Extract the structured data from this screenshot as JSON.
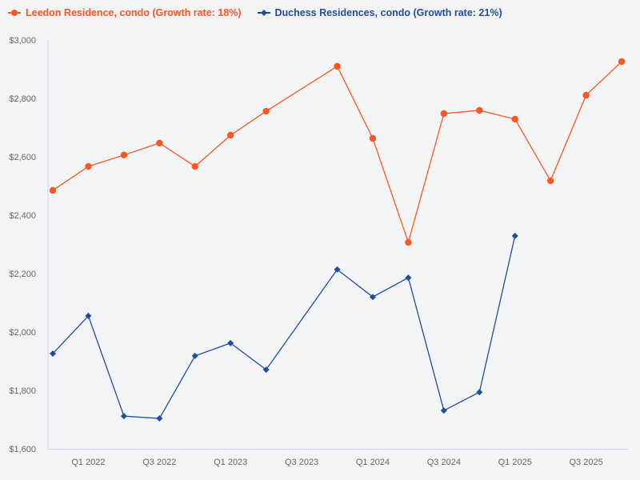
{
  "chart_data": {
    "type": "line",
    "title": "",
    "xlabel": "",
    "ylabel": "",
    "ylim": [
      1600,
      3000
    ],
    "y_ticks": [
      "$1,600",
      "$1,800",
      "$2,000",
      "$2,200",
      "$2,400",
      "$2,600",
      "$2,800",
      "$3,000"
    ],
    "y_tick_values": [
      1600,
      1800,
      2000,
      2200,
      2400,
      2600,
      2800,
      3000
    ],
    "x": [
      "Q4 2021",
      "Q1 2022",
      "Q2 2022",
      "Q3 2022",
      "Q4 2022",
      "Q1 2023",
      "Q2 2023",
      "Q3 2023",
      "Q4 2023",
      "Q1 2024",
      "Q2 2024",
      "Q3 2024",
      "Q4 2024",
      "Q1 2025",
      "Q2 2025",
      "Q3 2025",
      "Q4 2025"
    ],
    "x_tick_labels": [
      "Q1 2022",
      "Q3 2022",
      "Q1 2023",
      "Q3 2023",
      "Q1 2024",
      "Q3 2024",
      "Q1 2025",
      "Q3 2025"
    ],
    "grid": false,
    "legend_position": "top-left",
    "series": [
      {
        "name": "Leedon Residence, condo (Growth rate: 18%)",
        "color": "#ff5722",
        "marker": "circle",
        "values": [
          2485,
          2567,
          2606,
          2647,
          2567,
          2674,
          2756,
          null,
          2910,
          2663,
          2307,
          2748,
          2759,
          2729,
          2518,
          2811,
          2926
        ]
      },
      {
        "name": "Duchess Residences, condo (Growth rate: 21%)",
        "color": "#1f4e9c",
        "marker": "diamond",
        "values": [
          1926,
          2055,
          1712,
          1704,
          1918,
          1962,
          1871,
          null,
          2214,
          2120,
          2186,
          1731,
          1794,
          2329,
          null,
          null,
          null
        ]
      }
    ]
  }
}
